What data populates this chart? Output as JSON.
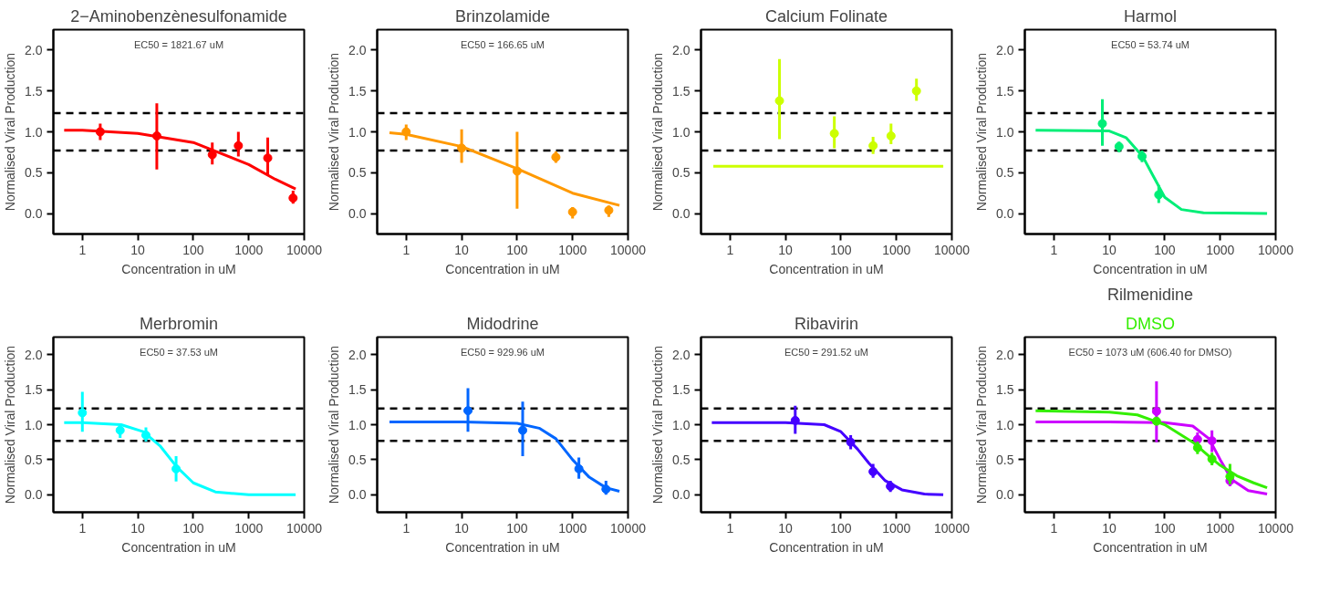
{
  "chart_data": [
    {
      "type": "scatter",
      "title": "2−Aminobenzènesulfonamide",
      "xlabel": "Concentration in uM",
      "ylabel": "Normalised Viral Production",
      "annotations": [
        "EC50 = 1821.67 uM"
      ],
      "log": "x",
      "xlim": [
        0.3,
        10000
      ],
      "ylim": [
        -0.25,
        2.25
      ],
      "xticks": [
        1,
        10,
        100,
        1000,
        10000
      ],
      "yticks": [
        {
          "value": 0,
          "label": "0.0"
        },
        {
          "value": 0.5,
          "label": "0.5"
        },
        {
          "value": 1,
          "label": "1.0"
        },
        {
          "value": 1.5,
          "label": "1.5"
        },
        {
          "value": 2,
          "label": "2.0"
        }
      ],
      "grid": false,
      "line_style": "solid",
      "ref_lines": [
        {
          "axis": "y",
          "value": 1.23,
          "line_style": "dashed",
          "color": "#000000"
        },
        {
          "axis": "y",
          "value": 0.77,
          "line_style": "dashed",
          "color": "#000000"
        }
      ],
      "series": [
        {
          "marker": "circle",
          "color": "#ff0000",
          "x": [
            2.1,
            22,
            220,
            650,
            2200,
            6300
          ],
          "values": [
            1.0,
            0.95,
            0.72,
            0.83,
            0.68,
            0.19
          ],
          "errors": [
            [
              0.9,
              1.1
            ],
            [
              0.54,
              1.35
            ],
            [
              0.6,
              0.87
            ],
            [
              0.7,
              1.0
            ],
            [
              0.48,
              0.93
            ],
            [
              0.12,
              0.28
            ]
          ]
        },
        {
          "type": "line",
          "color": "#ff0000",
          "x": [
            0.47,
            1,
            10,
            100,
            1000,
            3000,
            7000
          ],
          "values": [
            1.02,
            1.02,
            0.98,
            0.87,
            0.6,
            0.42,
            0.3
          ]
        }
      ]
    },
    {
      "type": "scatter",
      "title": "Brinzolamide",
      "xlabel": "Concentration in uM",
      "ylabel": "Normalised Viral Production",
      "annotations": [
        "EC50 = 166.65 uM"
      ],
      "log": "x",
      "xlim": [
        0.3,
        10000
      ],
      "ylim": [
        -0.25,
        2.25
      ],
      "xticks": [
        1,
        10,
        100,
        1000,
        10000
      ],
      "yticks": [
        {
          "value": 0,
          "label": "0.0"
        },
        {
          "value": 0.5,
          "label": "0.5"
        },
        {
          "value": 1,
          "label": "1.0"
        },
        {
          "value": 1.5,
          "label": "1.5"
        },
        {
          "value": 2,
          "label": "2.0"
        }
      ],
      "grid": false,
      "line_style": "solid",
      "ref_lines": [
        {
          "axis": "y",
          "value": 1.23,
          "line_style": "dashed",
          "color": "#000000"
        },
        {
          "axis": "y",
          "value": 0.77,
          "line_style": "dashed",
          "color": "#000000"
        }
      ],
      "series": [
        {
          "marker": "circle",
          "color": "#ff9900",
          "x": [
            1,
            10,
            100,
            500,
            1000,
            4500
          ],
          "values": [
            1.0,
            0.8,
            0.52,
            0.69,
            0.02,
            0.04
          ],
          "errors": [
            [
              0.9,
              1.09
            ],
            [
              0.62,
              1.03
            ],
            [
              0.06,
              1.0
            ],
            [
              0.62,
              0.76
            ],
            [
              -0.06,
              0.08
            ],
            [
              -0.04,
              0.1
            ]
          ]
        },
        {
          "type": "line",
          "color": "#ff9900",
          "x": [
            0.5,
            1,
            10,
            100,
            1000,
            7000
          ],
          "values": [
            0.99,
            0.97,
            0.82,
            0.55,
            0.25,
            0.1
          ]
        }
      ]
    },
    {
      "type": "scatter",
      "title": "Calcium Folinate",
      "xlabel": "Concentration in uM",
      "ylabel": "Normalised Viral Production",
      "log": "x",
      "xlim": [
        0.3,
        10000
      ],
      "ylim": [
        -0.25,
        2.25
      ],
      "xticks": [
        1,
        10,
        100,
        1000,
        10000
      ],
      "yticks": [
        {
          "value": 0,
          "label": "0.0"
        },
        {
          "value": 0.5,
          "label": "0.5"
        },
        {
          "value": 1,
          "label": "1.0"
        },
        {
          "value": 1.5,
          "label": "1.5"
        },
        {
          "value": 2,
          "label": "2.0"
        }
      ],
      "grid": false,
      "line_style": "solid",
      "ref_lines": [
        {
          "axis": "y",
          "value": 1.23,
          "line_style": "dashed",
          "color": "#000000"
        },
        {
          "axis": "y",
          "value": 0.77,
          "line_style": "dashed",
          "color": "#000000"
        }
      ],
      "series": [
        {
          "marker": "circle",
          "color": "#ccff00",
          "x": [
            7.8,
            76,
            380,
            800,
            2300
          ],
          "values": [
            1.38,
            0.98,
            0.83,
            0.95,
            1.5
          ],
          "errors": [
            [
              0.91,
              1.89
            ],
            [
              0.8,
              1.19
            ],
            [
              0.73,
              0.94
            ],
            [
              0.85,
              1.1
            ],
            [
              1.38,
              1.65
            ]
          ]
        },
        {
          "type": "line",
          "color": "#ccff00",
          "x": [
            0.5,
            7000
          ],
          "values": [
            0.58,
            0.58
          ]
        }
      ]
    },
    {
      "type": "scatter",
      "title": "Harmol",
      "xlabel": "Concentration in uM",
      "ylabel": "Normalised Viral Production",
      "annotations": [
        "EC50 = 53.74 uM"
      ],
      "log": "x",
      "xlim": [
        0.3,
        10000
      ],
      "ylim": [
        -0.25,
        2.25
      ],
      "xticks": [
        1,
        10,
        100,
        1000,
        10000
      ],
      "yticks": [
        {
          "value": 0,
          "label": "0.0"
        },
        {
          "value": 0.5,
          "label": "0.5"
        },
        {
          "value": 1,
          "label": "1.0"
        },
        {
          "value": 1.5,
          "label": "1.5"
        },
        {
          "value": 2,
          "label": "2.0"
        }
      ],
      "grid": false,
      "line_style": "solid",
      "ref_lines": [
        {
          "axis": "y",
          "value": 1.23,
          "line_style": "dashed",
          "color": "#000000"
        },
        {
          "axis": "y",
          "value": 0.77,
          "line_style": "dashed",
          "color": "#000000"
        }
      ],
      "series": [
        {
          "marker": "circle",
          "color": "#00ee77",
          "x": [
            7.5,
            15,
            39,
            78
          ],
          "values": [
            1.1,
            0.82,
            0.7,
            0.23
          ],
          "errors": [
            [
              0.83,
              1.4
            ],
            [
              0.75,
              0.88
            ],
            [
              0.63,
              0.77
            ],
            [
              0.13,
              0.35
            ]
          ]
        },
        {
          "type": "line",
          "color": "#00ee77",
          "x": [
            0.47,
            10,
            20,
            40,
            63,
            100,
            200,
            500,
            7000
          ],
          "values": [
            1.02,
            1.01,
            0.93,
            0.7,
            0.45,
            0.2,
            0.05,
            0.01,
            0
          ]
        }
      ]
    },
    {
      "type": "scatter",
      "title": "Merbromin",
      "xlabel": "Concentration in uM",
      "ylabel": "Normalised Viral Production",
      "annotations": [
        "EC50 = 37.53 uM"
      ],
      "log": "x",
      "xlim": [
        0.3,
        10000
      ],
      "ylim": [
        -0.25,
        2.25
      ],
      "xticks": [
        1,
        10,
        100,
        1000,
        10000
      ],
      "yticks": [
        {
          "value": 0,
          "label": "0.0"
        },
        {
          "value": 0.5,
          "label": "0.5"
        },
        {
          "value": 1,
          "label": "1.0"
        },
        {
          "value": 1.5,
          "label": "1.5"
        },
        {
          "value": 2,
          "label": "2.0"
        }
      ],
      "grid": false,
      "line_style": "solid",
      "ref_lines": [
        {
          "axis": "y",
          "value": 1.23,
          "line_style": "dashed",
          "color": "#000000"
        },
        {
          "axis": "y",
          "value": 0.77,
          "line_style": "dashed",
          "color": "#000000"
        }
      ],
      "series": [
        {
          "marker": "circle",
          "color": "#00ffff",
          "x": [
            1,
            4.8,
            14,
            49
          ],
          "values": [
            1.17,
            0.92,
            0.85,
            0.37
          ],
          "errors": [
            [
              0.9,
              1.47
            ],
            [
              0.81,
              1.0
            ],
            [
              0.76,
              0.96
            ],
            [
              0.19,
              0.55
            ]
          ]
        },
        {
          "type": "line",
          "color": "#00ffff",
          "x": [
            0.47,
            1,
            5,
            12.5,
            25,
            50,
            100,
            250,
            1000,
            7000
          ],
          "values": [
            1.03,
            1.03,
            1.0,
            0.9,
            0.7,
            0.4,
            0.17,
            0.04,
            0,
            0
          ]
        }
      ]
    },
    {
      "type": "scatter",
      "title": "Midodrine",
      "xlabel": "Concentration in uM",
      "ylabel": "Normalised Viral Production",
      "annotations": [
        "EC50 = 929.96 uM"
      ],
      "log": "x",
      "xlim": [
        0.3,
        10000
      ],
      "ylim": [
        -0.25,
        2.25
      ],
      "xticks": [
        1,
        10,
        100,
        1000,
        10000
      ],
      "yticks": [
        {
          "value": 0,
          "label": "0.0"
        },
        {
          "value": 0.5,
          "label": "0.5"
        },
        {
          "value": 1,
          "label": "1.0"
        },
        {
          "value": 1.5,
          "label": "1.5"
        },
        {
          "value": 2,
          "label": "2.0"
        }
      ],
      "grid": false,
      "line_style": "solid",
      "ref_lines": [
        {
          "axis": "y",
          "value": 1.23,
          "line_style": "dashed",
          "color": "#000000"
        },
        {
          "axis": "y",
          "value": 0.77,
          "line_style": "dashed",
          "color": "#000000"
        }
      ],
      "series": [
        {
          "marker": "circle",
          "color": "#0066ff",
          "x": [
            13,
            126,
            1300,
            4000
          ],
          "values": [
            1.2,
            0.92,
            0.37,
            0.08
          ],
          "errors": [
            [
              0.9,
              1.52
            ],
            [
              0.55,
              1.33
            ],
            [
              0.23,
              0.53
            ],
            [
              0,
              0.2
            ]
          ]
        },
        {
          "type": "line",
          "color": "#0066ff",
          "x": [
            0.5,
            10,
            100,
            250,
            500,
            1000,
            2000,
            4000,
            7000
          ],
          "values": [
            1.04,
            1.04,
            1.02,
            0.95,
            0.8,
            0.5,
            0.25,
            0.1,
            0.05
          ]
        }
      ]
    },
    {
      "type": "scatter",
      "title": "Ribavirin",
      "xlabel": "Concentration in uM",
      "ylabel": "Normalised Viral Production",
      "annotations": [
        "EC50 = 291.52 uM"
      ],
      "log": "x",
      "xlim": [
        0.3,
        10000
      ],
      "ylim": [
        -0.25,
        2.25
      ],
      "xticks": [
        1,
        10,
        100,
        1000,
        10000
      ],
      "yticks": [
        {
          "value": 0,
          "label": "0.0"
        },
        {
          "value": 0.5,
          "label": "0.5"
        },
        {
          "value": 1,
          "label": "1.0"
        },
        {
          "value": 1.5,
          "label": "1.5"
        },
        {
          "value": 2,
          "label": "2.0"
        }
      ],
      "grid": false,
      "line_style": "solid",
      "ref_lines": [
        {
          "axis": "y",
          "value": 1.23,
          "line_style": "dashed",
          "color": "#000000"
        },
        {
          "axis": "y",
          "value": 0.77,
          "line_style": "dashed",
          "color": "#000000"
        }
      ],
      "series": [
        {
          "marker": "circle",
          "color": "#4400ff",
          "x": [
            15,
            150,
            380,
            780
          ],
          "values": [
            1.06,
            0.75,
            0.33,
            0.12
          ],
          "errors": [
            [
              0.87,
              1.27
            ],
            [
              0.65,
              0.85
            ],
            [
              0.24,
              0.44
            ],
            [
              0.04,
              0.2
            ]
          ]
        },
        {
          "type": "line",
          "color": "#4400ff",
          "x": [
            0.47,
            10,
            50,
            100,
            200,
            320,
            630,
            1260,
            3200,
            7000
          ],
          "values": [
            1.03,
            1.03,
            1.0,
            0.9,
            0.65,
            0.45,
            0.2,
            0.07,
            0.01,
            0
          ]
        }
      ]
    },
    {
      "type": "scatter",
      "title": "Rilmenidine",
      "xlabel": "Concentration in uM",
      "ylabel": "Normalised Viral Production",
      "annotations": [
        "EC50 = 1073 uM (606.40 for DMSO)"
      ],
      "log": "x",
      "xlim": [
        0.3,
        10000
      ],
      "ylim": [
        -0.25,
        2.25
      ],
      "xticks": [
        1,
        10,
        100,
        1000,
        10000
      ],
      "yticks": [
        {
          "value": 0,
          "label": "0.0"
        },
        {
          "value": 0.5,
          "label": "0.5"
        },
        {
          "value": 1,
          "label": "1.0"
        },
        {
          "value": 1.5,
          "label": "1.5"
        },
        {
          "value": 2,
          "label": "2.0"
        }
      ],
      "grid": false,
      "line_style": "solid",
      "ref_lines": [
        {
          "axis": "y",
          "value": 1.23,
          "line_style": "dashed",
          "color": "#000000"
        },
        {
          "axis": "y",
          "value": 0.77,
          "line_style": "dashed",
          "color": "#000000"
        }
      ],
      "series": [
        {
          "type": "line",
          "color": "#cc00ff",
          "x": [
            0.47,
            10,
            100,
            320,
            630,
            1000,
            1600,
            3200,
            7000
          ],
          "values": [
            1.04,
            1.04,
            1.03,
            0.98,
            0.8,
            0.5,
            0.22,
            0.06,
            0.01
          ]
        },
        {
          "marker": "circle",
          "color": "#cc00ff",
          "x": [
            71,
            390,
            710,
            1500
          ],
          "values": [
            1.19,
            0.79,
            0.77,
            0.2
          ],
          "errors": [
            [
              0.75,
              1.62
            ],
            [
              0.69,
              0.89
            ],
            [
              0.61,
              0.92
            ],
            [
              0.12,
              0.32
            ]
          ]
        },
        {
          "type": "line",
          "name": "DMSO",
          "color": "#33ee00",
          "x": [
            0.47,
            10,
            32,
            100,
            320,
            630,
            1000,
            2000,
            4000,
            7000
          ],
          "values": [
            1.2,
            1.18,
            1.14,
            1.0,
            0.75,
            0.55,
            0.42,
            0.27,
            0.17,
            0.1
          ]
        },
        {
          "marker": "circle",
          "color": "#33ee00",
          "x": [
            71,
            390,
            710,
            1500
          ],
          "values": [
            1.05,
            0.67,
            0.51,
            0.26
          ],
          "errors": [
            null,
            [
              0.58,
              0.76
            ],
            [
              0.42,
              0.6
            ],
            [
              0.15,
              0.44
            ]
          ]
        }
      ]
    }
  ]
}
